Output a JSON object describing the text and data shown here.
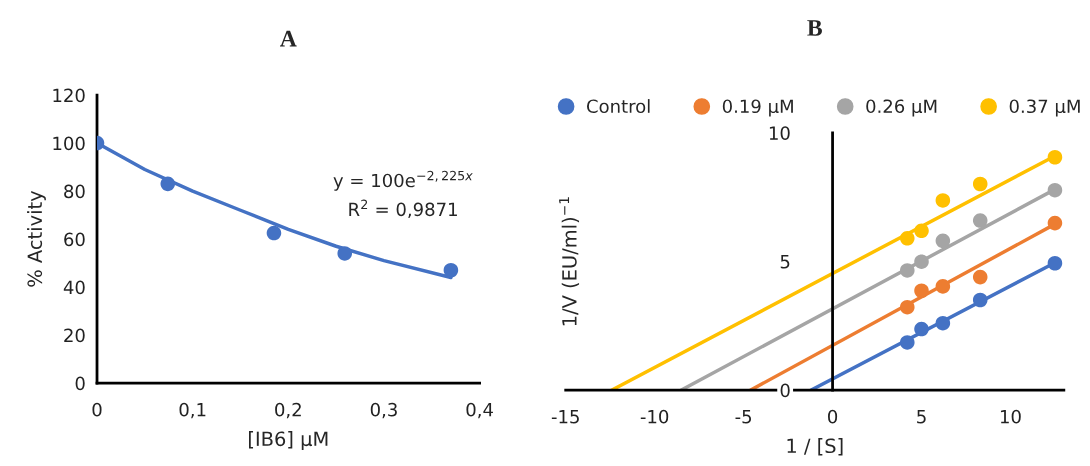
{
  "chart_data": [
    {
      "type": "scatter",
      "title": "A",
      "xlabel": "[IB6] µM",
      "ylabel": "% Activity",
      "xlim": [
        0,
        0.4
      ],
      "ylim": [
        0,
        120
      ],
      "xticks": [
        {
          "value": 0,
          "label": "0"
        },
        {
          "value": 0.1,
          "label": "0,1"
        },
        {
          "value": 0.2,
          "label": "0,2"
        },
        {
          "value": 0.3,
          "label": "0,3"
        },
        {
          "value": 0.4,
          "label": "0,4"
        }
      ],
      "yticks": [
        0,
        20,
        40,
        60,
        80,
        100,
        120
      ],
      "marker": "circle",
      "annotations": [
        "y = 100e$^{−2,225x}$",
        "R$^{2}$ = 0,9871"
      ],
      "series": [
        {
          "color": "#4472c4",
          "x": [
            0,
            0.074,
            0.185,
            0.259,
            0.37
          ],
          "values": [
            100,
            83,
            62.5,
            54,
            47
          ]
        },
        {
          "type": "line",
          "marker": "none",
          "color": "#4472c4",
          "x": [
            0,
            0.05,
            0.1,
            0.15,
            0.2,
            0.25,
            0.3,
            0.37
          ],
          "values": [
            100,
            89,
            80,
            72,
            64,
            57,
            51,
            44
          ]
        }
      ]
    },
    {
      "type": "scatter",
      "title": "B",
      "xlabel": "1 / [S]",
      "ylabel": "1/V (EU/ml)$^{−1}$",
      "xlim": [
        -15,
        13
      ],
      "ylim": [
        0,
        10
      ],
      "xticks": [
        -15,
        -10,
        -5,
        0,
        5,
        10
      ],
      "yticks": [
        0,
        5,
        10
      ],
      "marker": "circle",
      "legend": "top",
      "series": [
        {
          "name": "Control",
          "color": "#4472c4",
          "x": [
            4.2,
            5,
            6.2,
            8.3,
            12.5
          ],
          "values": [
            1.85,
            2.37,
            2.6,
            3.5,
            4.93
          ]
        },
        {
          "name": "0.19 µM",
          "color": "#ed7d31",
          "x": [
            4.2,
            5,
            6.2,
            8.3,
            12.5
          ],
          "values": [
            3.22,
            3.86,
            4.03,
            4.39,
            6.49
          ]
        },
        {
          "name": "0.26 µM",
          "color": "#a5a5a5",
          "x": [
            4.2,
            5,
            6.2,
            8.3,
            12.5
          ],
          "values": [
            4.65,
            4.99,
            5.8,
            6.59,
            7.77
          ]
        },
        {
          "name": "0.37 µM",
          "color": "#ffc000",
          "x": [
            4.2,
            5,
            6.2,
            8.3,
            12.5
          ],
          "values": [
            5.9,
            6.19,
            7.37,
            8.01,
            9.05
          ]
        },
        {
          "type": "line",
          "marker": "none",
          "color": "#4472c4",
          "x": [
            -1.2,
            12.5
          ],
          "values": [
            0,
            4.95
          ]
        },
        {
          "type": "line",
          "marker": "none",
          "color": "#ed7d31",
          "x": [
            -4.6,
            12.5
          ],
          "values": [
            0,
            6.45
          ]
        },
        {
          "type": "line",
          "marker": "none",
          "color": "#a5a5a5",
          "x": [
            -8.5,
            12.5
          ],
          "values": [
            0,
            7.8
          ]
        },
        {
          "type": "line",
          "marker": "none",
          "color": "#ffc000",
          "x": [
            -12.4,
            12.5
          ],
          "values": [
            0,
            9.1
          ]
        }
      ]
    }
  ]
}
